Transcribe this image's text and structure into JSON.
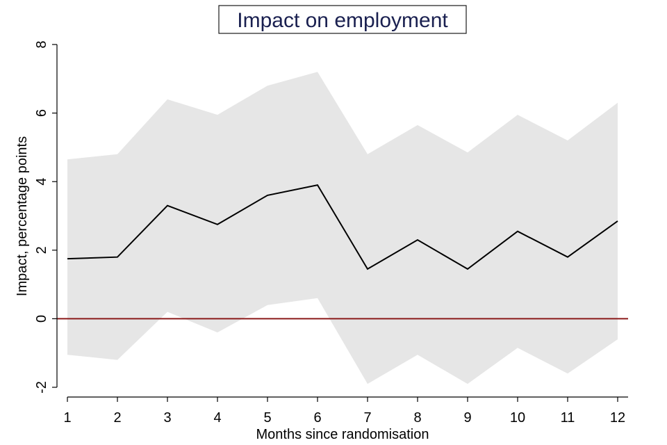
{
  "chart_data": {
    "type": "line",
    "title": "Impact on employment",
    "xlabel": "Months since randomisation",
    "ylabel": "Impact, percentage points",
    "x": [
      1,
      2,
      3,
      4,
      5,
      6,
      7,
      8,
      9,
      10,
      11,
      12
    ],
    "xticks": [
      "1",
      "2",
      "3",
      "4",
      "5",
      "6",
      "7",
      "8",
      "9",
      "10",
      "11",
      "12"
    ],
    "ylim": [
      -2,
      8
    ],
    "yticks": [
      "-2",
      "0",
      "2",
      "4",
      "6",
      "8"
    ],
    "ytick_values": [
      -2,
      0,
      2,
      4,
      6,
      8
    ],
    "series": [
      {
        "name": "Impact",
        "values": [
          1.75,
          1.8,
          3.3,
          2.75,
          3.6,
          3.9,
          1.45,
          2.3,
          1.45,
          2.55,
          1.8,
          2.85
        ]
      }
    ],
    "confidence_interval": {
      "upper": [
        4.65,
        4.8,
        6.4,
        5.95,
        6.8,
        7.2,
        4.8,
        5.65,
        4.85,
        5.95,
        5.2,
        6.3
      ],
      "lower": [
        -1.05,
        -1.2,
        0.2,
        -0.4,
        0.4,
        0.6,
        -1.9,
        -1.05,
        -1.9,
        -0.85,
        -1.6,
        -0.6
      ]
    },
    "reference_line": {
      "y": 0
    },
    "grid": false,
    "legend": "none"
  },
  "colors": {
    "band": "#e6e6e6",
    "line": "#000000",
    "reference": "#8b1a1a",
    "title": "#1a2050"
  }
}
